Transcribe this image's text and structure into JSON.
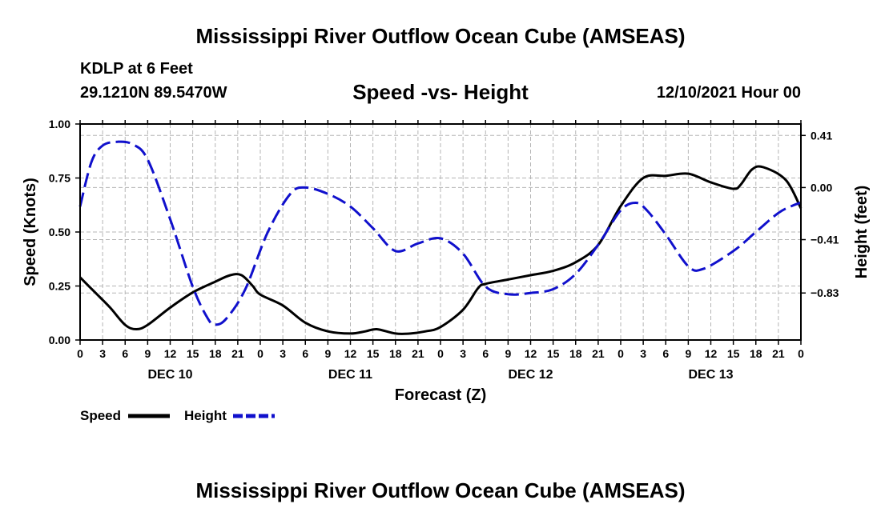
{
  "chart_data": {
    "type": "line",
    "title": "Mississippi River Outflow Ocean Cube (AMSEAS)",
    "footer_title": "Mississippi River Outflow Ocean Cube (AMSEAS)",
    "station": "KDLP at 6 Feet",
    "location": "29.1210N  89.5470W",
    "subtitle": "Speed -vs- Height",
    "datetime": "12/10/2021 Hour 00",
    "xlabel": "Forecast (Z)",
    "ylabel_left": "Speed (Knots)",
    "ylabel_right": "Height (feet)",
    "x_range_hours": [
      0,
      96
    ],
    "ylim_left": [
      0,
      1
    ],
    "ylim_right": [
      -1.2,
      0.5
    ],
    "x_tick_labels": [
      "0",
      "3",
      "6",
      "9",
      "12",
      "15",
      "18",
      "21",
      "0",
      "3",
      "6",
      "9",
      "12",
      "15",
      "18",
      "21",
      "0",
      "3",
      "6",
      "9",
      "12",
      "15",
      "18",
      "21",
      "0",
      "3",
      "6",
      "9",
      "12",
      "15",
      "18",
      "21",
      "0"
    ],
    "day_labels": [
      {
        "text": "DEC 10",
        "hour": 12
      },
      {
        "text": "DEC 11",
        "hour": 36
      },
      {
        "text": "DEC 12",
        "hour": 60
      },
      {
        "text": "DEC 13",
        "hour": 84
      }
    ],
    "left_ticks": [
      {
        "value": 0,
        "label": "0.00"
      },
      {
        "value": 0.25,
        "label": "0.25"
      },
      {
        "value": 0.5,
        "label": "0.50"
      },
      {
        "value": 0.75,
        "label": "0.75"
      },
      {
        "value": 1,
        "label": "1.00"
      }
    ],
    "right_ticks": [
      {
        "value": 0.41,
        "label": "0.41"
      },
      {
        "value": 0.0,
        "label": "0.00"
      },
      {
        "value": -0.41,
        "label": "−0.41"
      },
      {
        "value": -0.83,
        "label": "−0.83"
      }
    ],
    "series": [
      {
        "name": "Speed",
        "color": "#000000",
        "dashed": false,
        "axis": "left",
        "points": [
          [
            0,
            0.29
          ],
          [
            2,
            0.22
          ],
          [
            4,
            0.15
          ],
          [
            6,
            0.07
          ],
          [
            7.5,
            0.05
          ],
          [
            9,
            0.07
          ],
          [
            12,
            0.15
          ],
          [
            15,
            0.22
          ],
          [
            18,
            0.27
          ],
          [
            20,
            0.3
          ],
          [
            21.5,
            0.3
          ],
          [
            23,
            0.25
          ],
          [
            24,
            0.21
          ],
          [
            27,
            0.16
          ],
          [
            30,
            0.08
          ],
          [
            33,
            0.04
          ],
          [
            36,
            0.03
          ],
          [
            38,
            0.04
          ],
          [
            39.5,
            0.05
          ],
          [
            42,
            0.03
          ],
          [
            44,
            0.03
          ],
          [
            46,
            0.04
          ],
          [
            48,
            0.06
          ],
          [
            51,
            0.14
          ],
          [
            53,
            0.24
          ],
          [
            54,
            0.26
          ],
          [
            57,
            0.28
          ],
          [
            60,
            0.3
          ],
          [
            63,
            0.32
          ],
          [
            66,
            0.36
          ],
          [
            69,
            0.44
          ],
          [
            72,
            0.62
          ],
          [
            75,
            0.75
          ],
          [
            78,
            0.76
          ],
          [
            81,
            0.77
          ],
          [
            84,
            0.73
          ],
          [
            87,
            0.7
          ],
          [
            88,
            0.72
          ],
          [
            89.5,
            0.79
          ],
          [
            91,
            0.8
          ],
          [
            94,
            0.74
          ],
          [
            96,
            0.61
          ]
        ]
      },
      {
        "name": "Height",
        "color": "#1010cc",
        "dashed": true,
        "axis": "right",
        "points": [
          [
            0,
            -0.15
          ],
          [
            1.5,
            0.2
          ],
          [
            3,
            0.33
          ],
          [
            5,
            0.36
          ],
          [
            7,
            0.34
          ],
          [
            9,
            0.22
          ],
          [
            12,
            -0.25
          ],
          [
            15,
            -0.78
          ],
          [
            17,
            -1.03
          ],
          [
            18,
            -1.08
          ],
          [
            19.5,
            -1.03
          ],
          [
            22,
            -0.8
          ],
          [
            25,
            -0.35
          ],
          [
            28,
            -0.05
          ],
          [
            30,
            0.0
          ],
          [
            33,
            -0.05
          ],
          [
            36,
            -0.15
          ],
          [
            39,
            -0.32
          ],
          [
            42,
            -0.5
          ],
          [
            45,
            -0.44
          ],
          [
            48,
            -0.4
          ],
          [
            51,
            -0.52
          ],
          [
            54,
            -0.78
          ],
          [
            57,
            -0.84
          ],
          [
            60,
            -0.83
          ],
          [
            63,
            -0.8
          ],
          [
            66,
            -0.68
          ],
          [
            69,
            -0.45
          ],
          [
            72,
            -0.18
          ],
          [
            74,
            -0.12
          ],
          [
            75.5,
            -0.18
          ],
          [
            78,
            -0.37
          ],
          [
            81,
            -0.62
          ],
          [
            83,
            -0.64
          ],
          [
            87,
            -0.5
          ],
          [
            90,
            -0.35
          ],
          [
            93,
            -0.2
          ],
          [
            95,
            -0.14
          ],
          [
            96,
            -0.12
          ]
        ]
      }
    ],
    "legend": [
      {
        "label": "Speed",
        "color": "#000000",
        "dashed": false
      },
      {
        "label": "Height",
        "color": "#1010cc",
        "dashed": true
      }
    ],
    "grid": true
  }
}
